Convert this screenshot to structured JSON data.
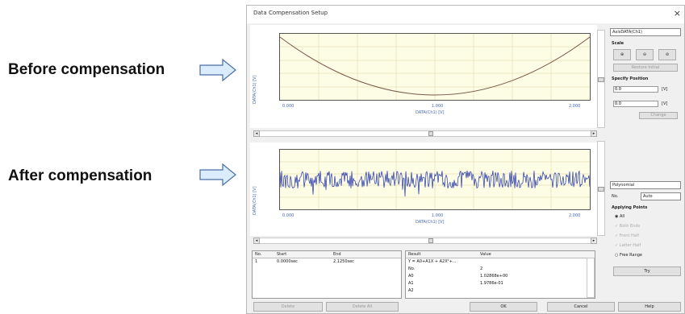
{
  "annotations": {
    "before": "Before compensation",
    "after": "After compensation"
  },
  "dialog": {
    "title": "Data Compensation Setup",
    "close": "×",
    "top_plot": {
      "y_label": "DATA(Ch1) [V]",
      "x_label": "DATA(Ch1) [V]",
      "x_ticks": [
        "0.000",
        "1.000",
        "2.000"
      ]
    },
    "bottom_plot": {
      "y_label": "DATA(Ch1) [V]",
      "x_label": "DATA(Ch1) [V]",
      "x_ticks": [
        "0.000",
        "1.000",
        "2.000"
      ]
    },
    "right_panel": {
      "axis_combo": "AxisDATA(Ch1)",
      "scale_label": "Scale",
      "zoom_buttons": [
        "⊕",
        "⊖",
        "⊘"
      ],
      "restore_button": "Restore Initial",
      "specify_position": "Specify Position",
      "min_field": "0.0",
      "max_field": "0.0",
      "unit": "[V]",
      "change_button": "Change",
      "fit_combo": "Polynomial",
      "order_label": "No.",
      "order_combo": "Auto",
      "apply_group": "Applying Points",
      "options": [
        "All",
        "Both Ends",
        "Front Half",
        "Latter Half",
        "Free Range"
      ],
      "try_button": "Try"
    },
    "range_table": {
      "headers": [
        "No.",
        "Start",
        "End"
      ],
      "rows": [
        [
          "1",
          "0.0000sec",
          "2.1250sec"
        ]
      ],
      "buttons": [
        "Delete",
        "Delete All"
      ]
    },
    "result_table": {
      "headers": [
        "Result",
        "Value"
      ],
      "rows": [
        [
          "Y = A0+A1X + A2X²+...",
          ""
        ],
        [
          "No.",
          "2"
        ],
        [
          "A0",
          "1.02868e+00"
        ],
        [
          "A1",
          "1.9786e-01"
        ],
        [
          "A2",
          ""
        ]
      ]
    },
    "footer": {
      "ok": "OK",
      "cancel": "Cancel",
      "help": "Help"
    }
  }
}
